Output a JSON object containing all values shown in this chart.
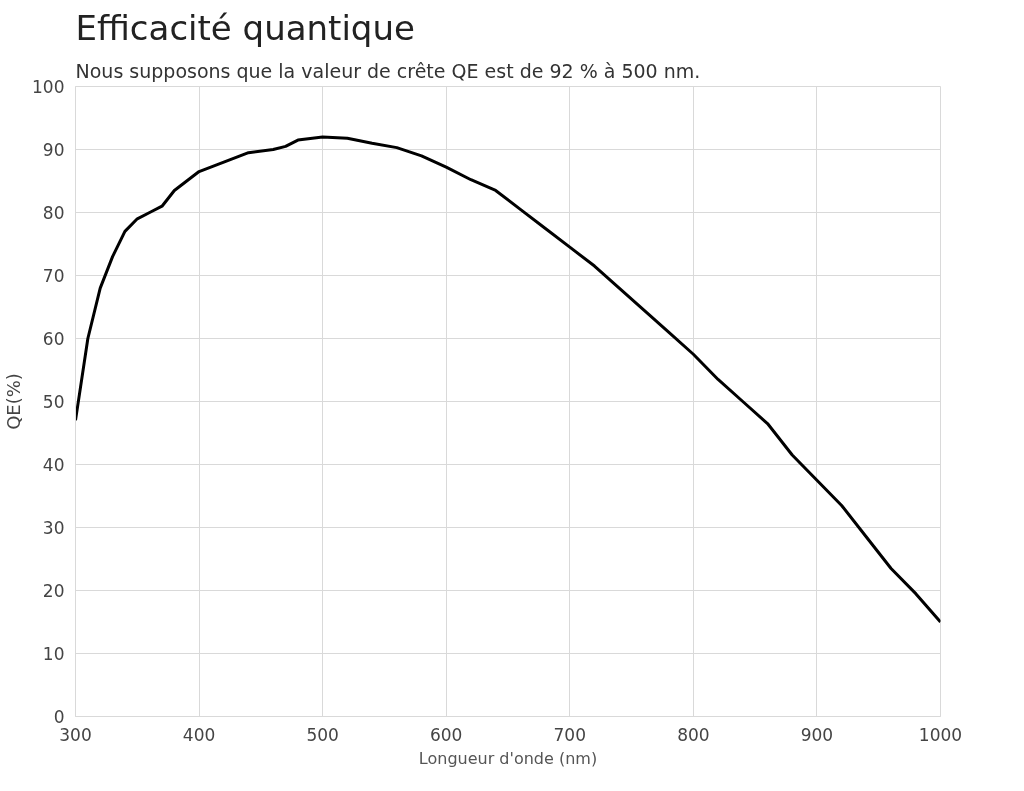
{
  "chart_data": {
    "type": "line",
    "title": "Efficacité quantique",
    "subtitle": "Nous supposons que la valeur de crête QE est de 92 % à 500 nm.",
    "xlabel": "Longueur d'onde (nm)",
    "ylabel": "QE(%)",
    "x": [
      300,
      310,
      320,
      330,
      340,
      350,
      360,
      370,
      380,
      390,
      400,
      420,
      440,
      460,
      470,
      480,
      500,
      520,
      540,
      560,
      580,
      600,
      620,
      640,
      660,
      680,
      700,
      720,
      740,
      760,
      780,
      800,
      820,
      840,
      860,
      880,
      900,
      920,
      940,
      960,
      980,
      1000
    ],
    "series": [
      {
        "color": "#000000",
        "values": [
          47,
          60,
          68,
          73,
          77,
          79,
          80,
          81,
          83.5,
          85,
          86.5,
          88,
          89.5,
          90,
          90.5,
          91.5,
          92,
          91.8,
          91,
          90.3,
          89,
          87.2,
          85.2,
          83.5,
          80.5,
          77.5,
          74.5,
          71.5,
          68,
          64.5,
          61,
          57.5,
          53.5,
          50,
          46.5,
          41.5,
          37.5,
          33.5,
          28.5,
          23.5,
          19.5,
          15
        ]
      }
    ],
    "xlim": [
      300,
      1000
    ],
    "ylim": [
      0,
      100
    ],
    "xticks": [
      300,
      400,
      500,
      600,
      700,
      800,
      900,
      1000
    ],
    "yticks": [
      0,
      10,
      20,
      30,
      40,
      50,
      60,
      70,
      80,
      90,
      100
    ],
    "grid": true,
    "line_style": "solid"
  }
}
